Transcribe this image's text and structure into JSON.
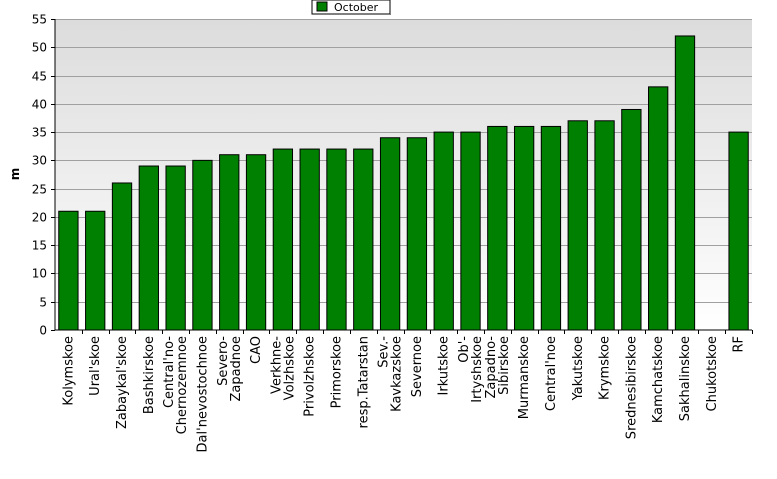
{
  "chart_data": {
    "type": "bar",
    "ylabel": "m",
    "ylim": [
      0,
      55
    ],
    "ytick_step": 5,
    "grid": true,
    "legend_position": "top-center",
    "series": [
      {
        "name": "October",
        "color": "#008000",
        "values": [
          21,
          21,
          26,
          29,
          29,
          30,
          31,
          31,
          32,
          32,
          32,
          32,
          34,
          34,
          35,
          35,
          36,
          36,
          36,
          37,
          37,
          39,
          43,
          52,
          null,
          35
        ]
      }
    ],
    "categories": [
      [
        "Kolymskoe"
      ],
      [
        "Ural'skoe"
      ],
      [
        "Zabaykal'skoe"
      ],
      [
        "Bashkirskoe"
      ],
      [
        "Central'no-",
        "Chernozemnoe"
      ],
      [
        "Dal'nevostochnoe"
      ],
      [
        "Severo-",
        "Zapadnoe"
      ],
      [
        "CAO"
      ],
      [
        "Verkhne-",
        "Volzhskoe"
      ],
      [
        "Privolzhskoe"
      ],
      [
        "Primorskoe"
      ],
      [
        "resp.Tatarstan"
      ],
      [
        "Sev.-",
        "Kavkazskoe"
      ],
      [
        "Severnoe"
      ],
      [
        "Irkutskoe"
      ],
      [
        "Ob'-",
        "Irtyshskoe"
      ],
      [
        "Zapadno-",
        "Sibirskoe"
      ],
      [
        "Murmanskoe"
      ],
      [
        "Central'noe"
      ],
      [
        "Yakutskoe"
      ],
      [
        "Krymskoe"
      ],
      [
        "Srednesibirskoe"
      ],
      [
        "Kamchatskoe"
      ],
      [
        "Sakhalinskoe"
      ],
      [
        "Chukotskoe"
      ],
      [
        "RF"
      ]
    ]
  }
}
